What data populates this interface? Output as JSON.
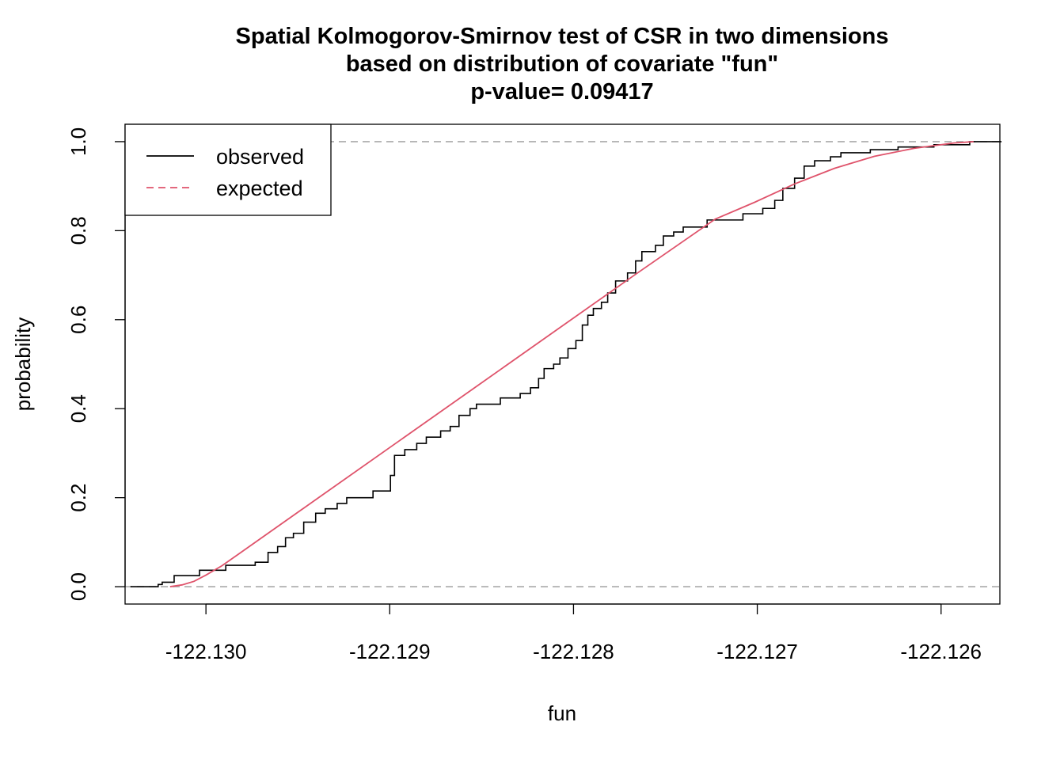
{
  "chart_data": {
    "type": "line",
    "title": [
      "Spatial Kolmogorov-Smirnov test of CSR in two dimensions",
      "based on distribution of covariate \"fun\"",
      "p-value= 0.09417"
    ],
    "xlabel": "fun",
    "ylabel": "probability",
    "xlim": [
      -122.13044,
      -122.12568
    ],
    "ylim": [
      -0.039,
      1.039
    ],
    "xticks": [
      {
        "value": -122.13,
        "label": "-122.130"
      },
      -122.129,
      -122.128,
      -122.127,
      -122.126
    ],
    "yticks": [
      {
        "value": 0,
        "label": "0.0"
      },
      0.2,
      0.4,
      0.6,
      0.8,
      {
        "value": 1,
        "label": "1.0"
      }
    ],
    "hlines": [
      0,
      1
    ],
    "legend": "top-left",
    "series": [
      {
        "name": "observed",
        "color": "#000000",
        "style": "step",
        "x": [
          -122.130411,
          -122.13026,
          -122.130238,
          -122.130173,
          -122.130035,
          -122.129892,
          -122.129732,
          -122.129662,
          -122.12961,
          -122.129567,
          -122.129524,
          -122.129468,
          -122.129403,
          -122.129351,
          -122.129286,
          -122.129234,
          -122.129091,
          -122.128996,
          -122.128974,
          -122.128918,
          -122.128853,
          -122.128801,
          -122.128723,
          -122.128671,
          -122.128623,
          -122.128563,
          -122.128528,
          -122.128398,
          -122.12829,
          -122.128234,
          -122.12819,
          -122.12816,
          -122.128108,
          -122.128074,
          -122.12803,
          -122.127987,
          -122.127952,
          -122.127922,
          -122.127892,
          -122.127848,
          -122.127814,
          -122.127771,
          -122.127706,
          -122.127662,
          -122.127628,
          -122.127554,
          -122.127511,
          -122.127455,
          -122.127403,
          -122.127273,
          -122.127078,
          -122.12697,
          -122.126905,
          -122.126861,
          -122.126797,
          -122.126745,
          -122.126688,
          -122.126602,
          -122.126545,
          -122.126385,
          -122.126234,
          -122.126039,
          -122.125844,
          -122.125671
        ],
        "values": [
          0,
          0.005,
          0.01,
          0.025,
          0.037,
          0.048,
          0.055,
          0.077,
          0.09,
          0.11,
          0.12,
          0.145,
          0.165,
          0.175,
          0.187,
          0.2,
          0.215,
          0.25,
          0.295,
          0.308,
          0.322,
          0.336,
          0.35,
          0.36,
          0.385,
          0.4,
          0.41,
          0.424,
          0.434,
          0.447,
          0.468,
          0.49,
          0.5,
          0.514,
          0.535,
          0.553,
          0.588,
          0.61,
          0.625,
          0.639,
          0.66,
          0.687,
          0.705,
          0.732,
          0.753,
          0.767,
          0.788,
          0.797,
          0.808,
          0.824,
          0.838,
          0.85,
          0.868,
          0.895,
          0.918,
          0.945,
          0.957,
          0.966,
          0.975,
          0.982,
          0.988,
          0.993,
          1,
          1
        ]
      },
      {
        "name": "expected",
        "color": "#df536b",
        "style": "smooth",
        "x": [
          -122.130195,
          -122.13013,
          -122.130065,
          -122.13,
          -122.129913,
          -122.129827,
          -122.129394,
          -122.128961,
          -122.128528,
          -122.128095,
          -122.127662,
          -122.127229,
          -122.127013,
          -122.126797,
          -122.12658,
          -122.126364,
          -122.126147,
          -122.125931,
          -122.125823
        ],
        "values": [
          0,
          0.004,
          0.012,
          0.026,
          0.047,
          0.072,
          0.198,
          0.324,
          0.45,
          0.576,
          0.702,
          0.826,
          0.864,
          0.905,
          0.94,
          0.967,
          0.985,
          0.997,
          1
        ]
      }
    ]
  }
}
